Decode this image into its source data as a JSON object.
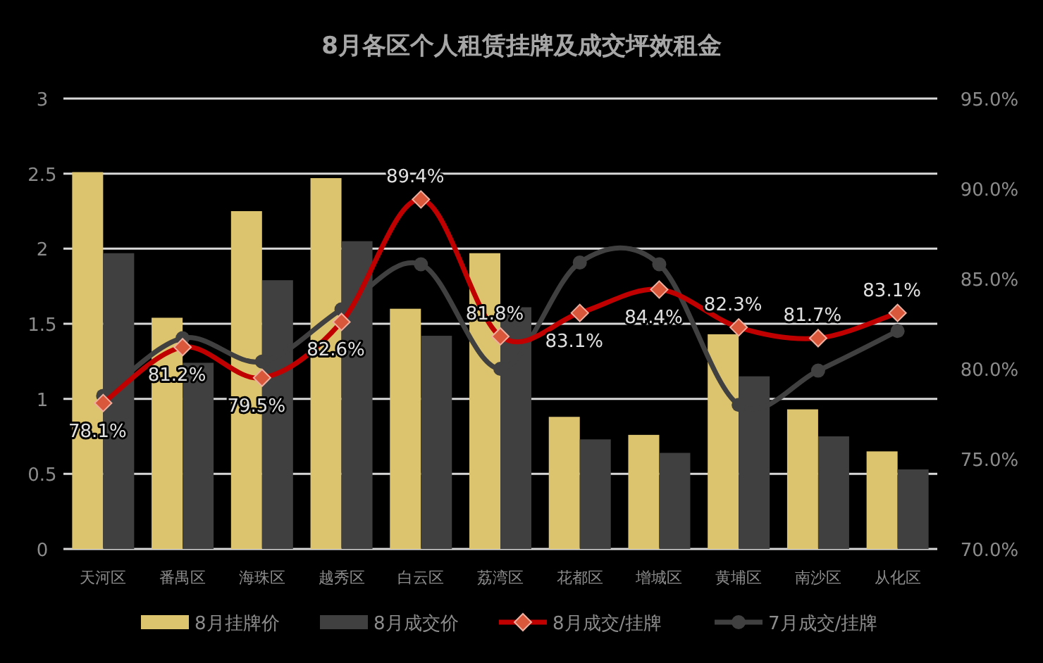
{
  "chart_data": {
    "type": "bar",
    "title": "8月各区个人租赁挂牌及成交坪效租金",
    "categories": [
      "天河区",
      "番禺区",
      "海珠区",
      "越秀区",
      "白云区",
      "荔湾区",
      "花都区",
      "增城区",
      "黄埔区",
      "南沙区",
      "从化区"
    ],
    "series": [
      {
        "name": "8月挂牌价",
        "color": "#dcc36e",
        "values": [
          2.51,
          1.54,
          2.25,
          2.47,
          1.6,
          1.97,
          0.88,
          0.76,
          1.43,
          0.93,
          0.65
        ]
      },
      {
        "name": "8月成交价",
        "color": "#404040",
        "values": [
          1.97,
          1.24,
          1.79,
          2.05,
          1.42,
          1.61,
          0.73,
          0.64,
          1.15,
          0.75,
          0.53
        ]
      },
      {
        "name": "8月成交/挂牌",
        "type": "line",
        "axis": "y2",
        "marker": "diamond",
        "color": "#c00000",
        "values": [
          78.1,
          81.2,
          79.5,
          82.6,
          89.4,
          81.8,
          83.1,
          84.4,
          82.3,
          81.7,
          83.1
        ],
        "value_labels": [
          "78.1%",
          "81.2%",
          "79.5%",
          "82.6%",
          "89.4%",
          "81.8%",
          "83.1%",
          "84.4%",
          "82.3%",
          "81.7%",
          "83.1%"
        ]
      },
      {
        "name": "7月成交/挂牌",
        "type": "line",
        "axis": "y2",
        "marker": "circle",
        "color": "#404040",
        "values": [
          78.5,
          81.7,
          80.4,
          83.3,
          85.8,
          80.0,
          85.9,
          85.8,
          78.0,
          79.9,
          82.1
        ]
      }
    ],
    "ylim": [
      0,
      3
    ],
    "yticks": [
      0,
      0.5,
      1,
      1.5,
      2,
      2.5,
      3
    ],
    "y2lim": [
      70,
      95
    ],
    "y2ticks": [
      {
        "value": 70,
        "label": "70.0%"
      },
      {
        "value": 75,
        "label": "75.0%"
      },
      {
        "value": 80,
        "label": "80.0%"
      },
      {
        "value": 85,
        "label": "85.0%"
      },
      {
        "value": 90,
        "label": "90.0%"
      },
      {
        "value": 95,
        "label": "95.0%"
      }
    ],
    "grid": "y",
    "legend": "bottom"
  }
}
